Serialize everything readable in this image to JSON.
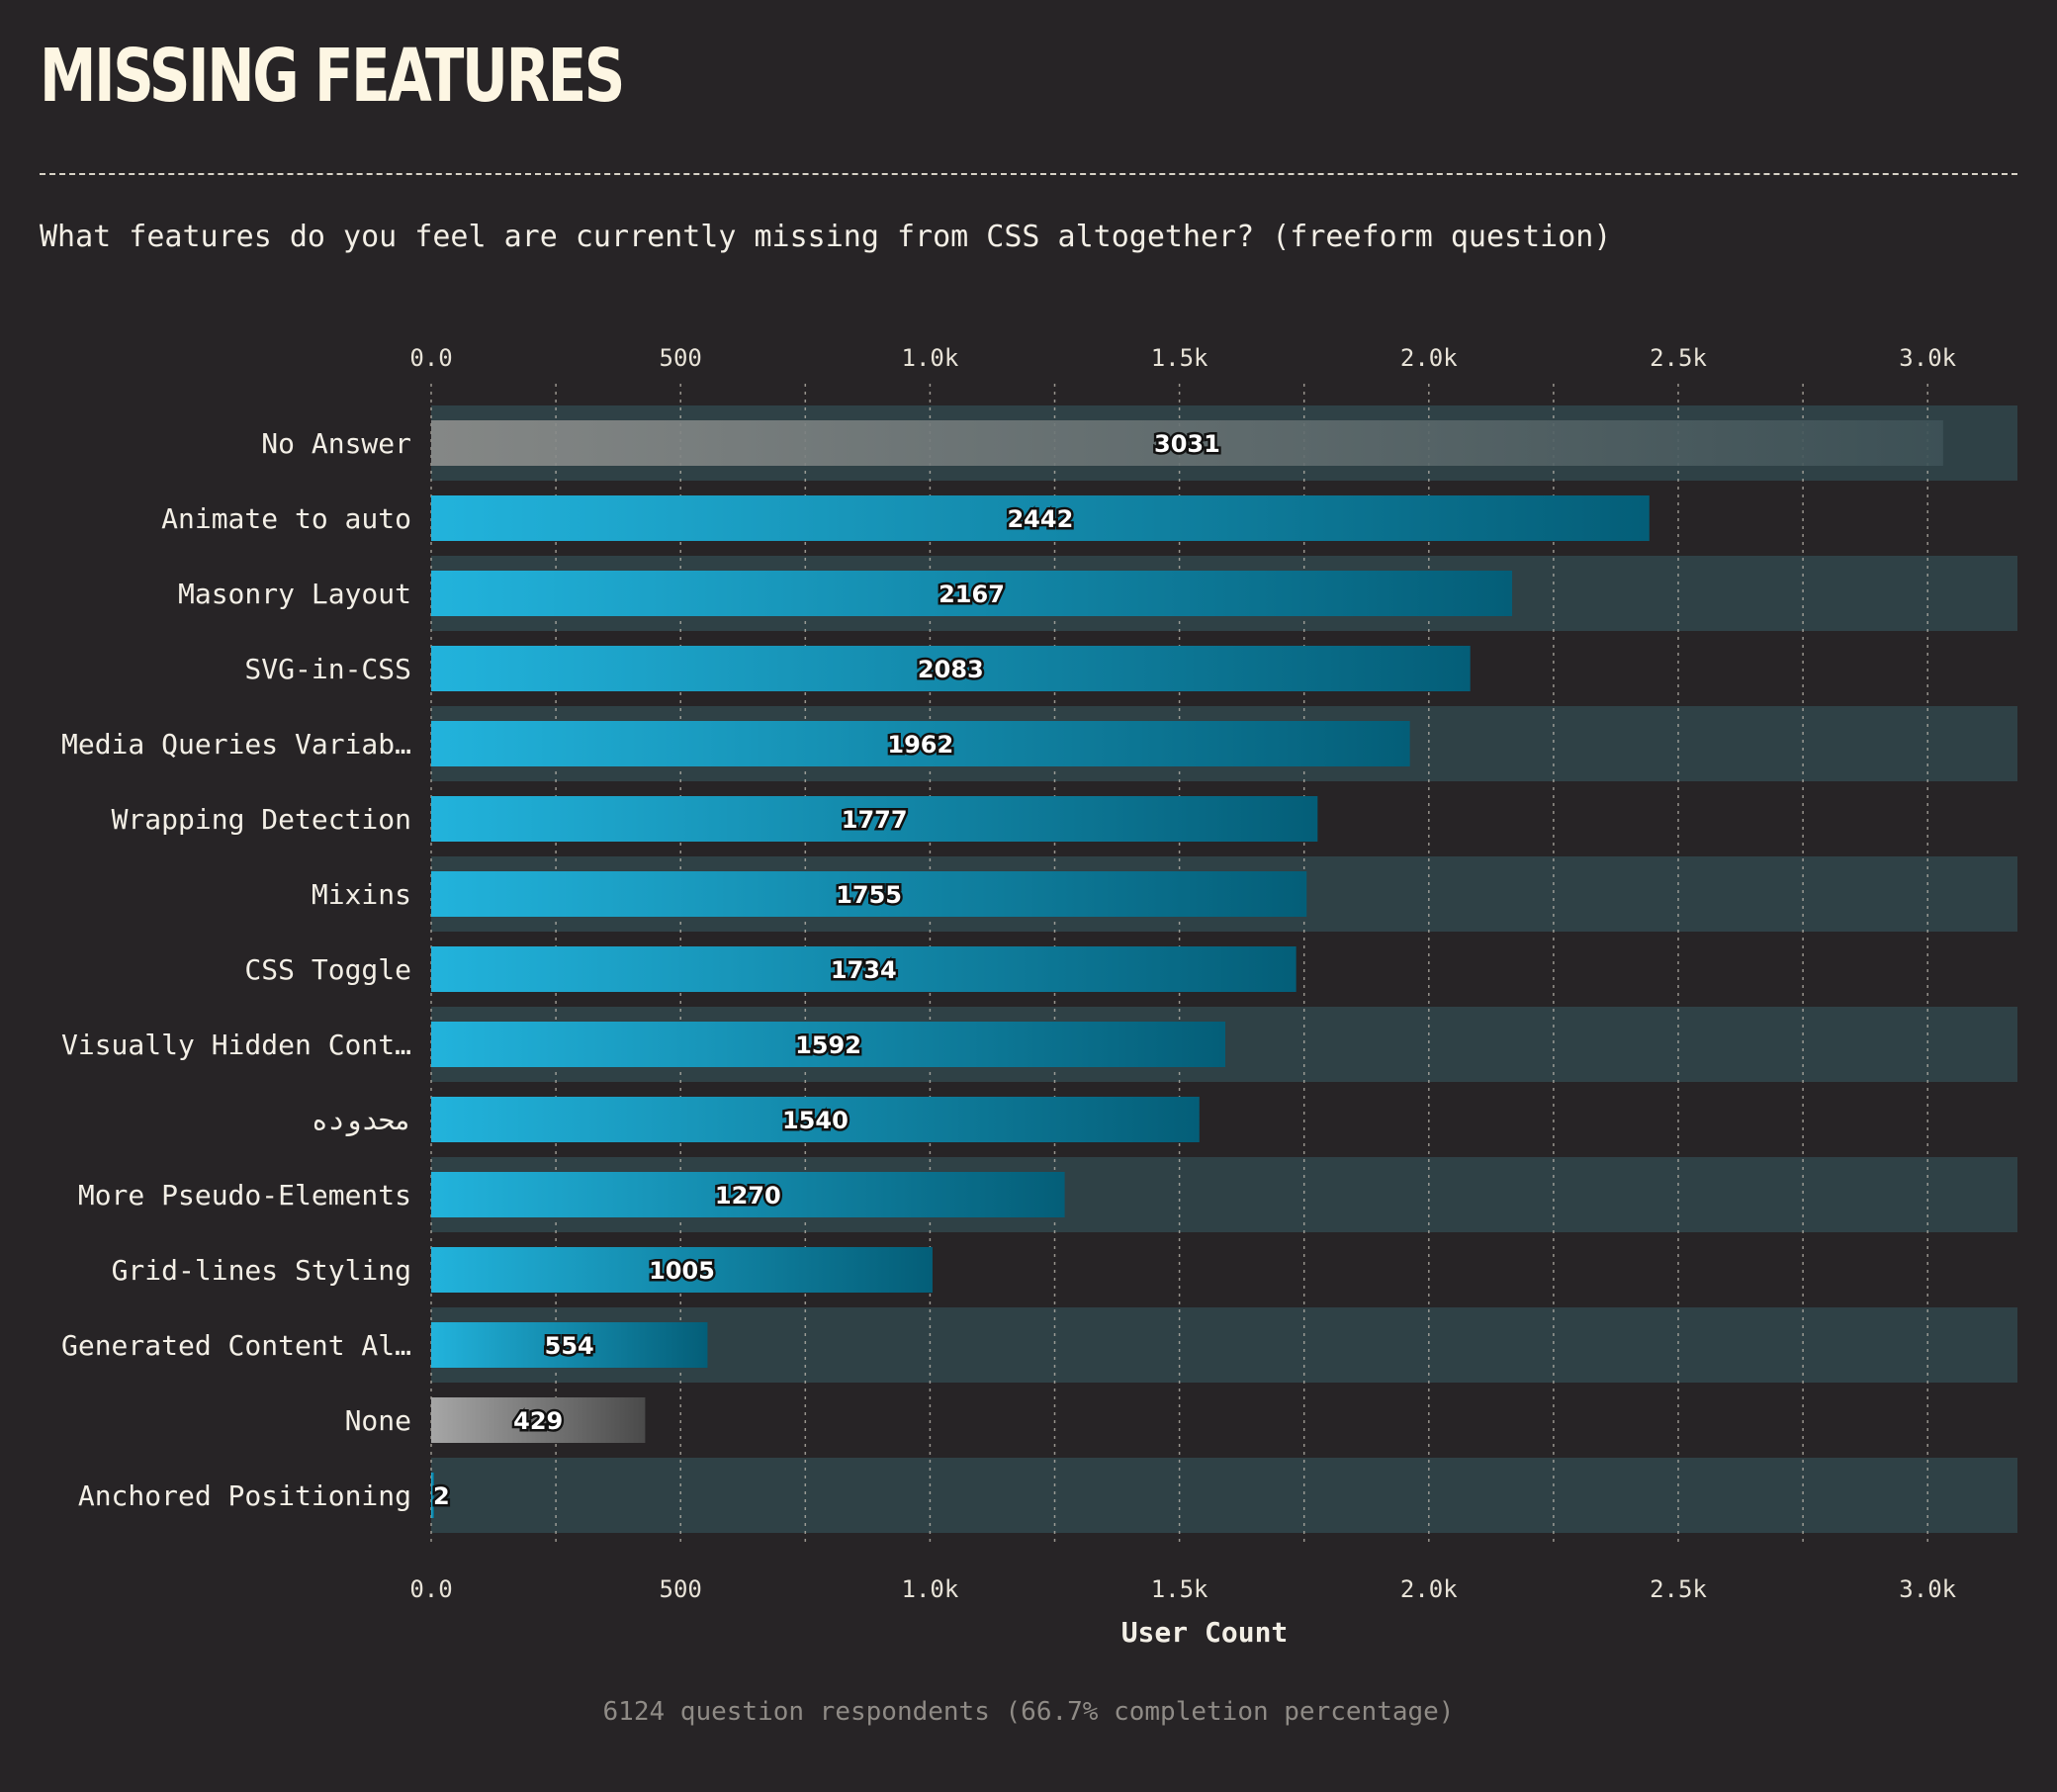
{
  "header": {
    "title": "MISSING FEATURES",
    "question": "What features do you feel are currently missing from CSS altogether? (freeform question)"
  },
  "footer": {
    "note": "6124 question respondents (66.7% completion percentage)"
  },
  "colors": {
    "background": "#272426",
    "band": "#2f4146",
    "bar_start": "#22b3dc",
    "bar_end": "#045e78",
    "neutral_start": "#8e8f8d",
    "neutral_end": "#3e5257",
    "none_start": "#a6a6a6",
    "none_end": "#4a4a4a"
  },
  "chart_data": {
    "type": "bar",
    "orientation": "horizontal",
    "categories": [
      "No Answer",
      "Animate to auto",
      "Masonry Layout",
      "SVG-in-CSS",
      "Media Queries Variab…",
      "Wrapping Detection",
      "Mixins",
      "CSS Toggle",
      "Visually Hidden Cont…",
      "محدوده",
      "More Pseudo-Elements",
      "Grid-lines Styling",
      "Generated Content Al…",
      "None",
      "Anchored Positioning"
    ],
    "values": [
      3031,
      2442,
      2167,
      2083,
      1962,
      1777,
      1755,
      1734,
      1592,
      1540,
      1270,
      1005,
      554,
      429,
      2
    ],
    "value_labels": [
      "3031",
      "2442",
      "2167",
      "2083",
      "1962",
      "1777",
      "1755",
      "1734",
      "1592",
      "1540",
      "1270",
      "1005",
      "554",
      "429",
      "2"
    ],
    "styles": [
      "neutral",
      "accent",
      "accent",
      "accent",
      "accent",
      "accent",
      "accent",
      "accent",
      "accent",
      "accent",
      "accent",
      "accent",
      "accent",
      "none",
      "accent"
    ],
    "xlabel": "User Count",
    "xlim": [
      0,
      3180
    ],
    "xticks": [
      0,
      500,
      1000,
      1500,
      2000,
      2500,
      3000
    ],
    "xtick_labels": [
      "0.0",
      "500",
      "1.0k",
      "1.5k",
      "2.0k",
      "2.5k",
      "3.0k"
    ],
    "minor_gridlines": true,
    "tick_positions": "top and bottom"
  }
}
